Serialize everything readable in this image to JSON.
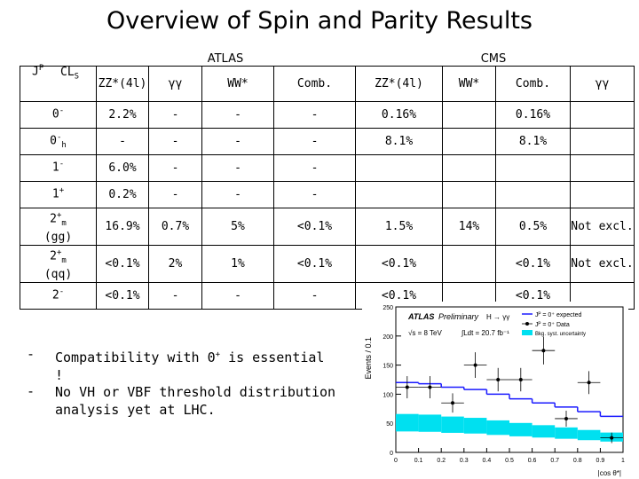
{
  "title": "Overview of Spin and Parity Results",
  "groups": {
    "atlas": "ATLAS",
    "cms": "CMS"
  },
  "corner": {
    "jp": "J",
    "jp_sup": "P",
    "cls": "CL",
    "cls_sub": "S"
  },
  "columns": [
    "ZZ*(4l)",
    "γγ",
    "WW*",
    "Comb.",
    "ZZ*(4l)",
    "WW*",
    "Comb.",
    "γγ"
  ],
  "rows": [
    {
      "label": "0",
      "sup": "-",
      "sub": "",
      "extra": "",
      "cells": [
        "2.2%",
        "-",
        "-",
        "-",
        "0.16%",
        "",
        "0.16%",
        ""
      ]
    },
    {
      "label": "0",
      "sup": "-",
      "sub": "h",
      "extra": "",
      "cells": [
        "-",
        "-",
        "-",
        "-",
        "8.1%",
        "",
        "8.1%",
        ""
      ]
    },
    {
      "label": "1",
      "sup": "-",
      "sub": "",
      "extra": "",
      "cells": [
        "6.0%",
        "-",
        "-",
        "-",
        "",
        "",
        "",
        ""
      ]
    },
    {
      "label": "1",
      "sup": "+",
      "sub": "",
      "extra": "",
      "cells": [
        "0.2%",
        "-",
        "-",
        "-",
        "",
        "",
        "",
        ""
      ]
    },
    {
      "label": "2",
      "sup": "+",
      "sub": "m",
      "extra": "(gg)",
      "cells": [
        "16.9%",
        "0.7%",
        "5%",
        "<0.1%",
        "1.5%",
        "14%",
        "0.5%",
        "Not excl."
      ]
    },
    {
      "label": "2",
      "sup": "+",
      "sub": "m",
      "extra": "(qq)",
      "cells": [
        "<0.1%",
        "2%",
        "1%",
        "<0.1%",
        "<0.1%",
        "",
        "<0.1%",
        "Not excl."
      ]
    },
    {
      "label": "2",
      "sup": "-",
      "sub": "",
      "extra": "",
      "cells": [
        "<0.1%",
        "-",
        "-",
        "-",
        "<0.1%",
        "",
        "<0.1%",
        ""
      ]
    }
  ],
  "bullets": [
    {
      "dash": "-",
      "text_a": "Compatibility with 0",
      "sup": "+",
      "text_b": " is essential !"
    },
    {
      "dash": "-",
      "text_a": "No VH or VBF threshold distribution analysis yet at LHC.",
      "sup": "",
      "text_b": ""
    }
  ],
  "plot": {
    "ylabel": "Events / 0.1",
    "xlabel": "|cos θ*|",
    "legend_title_a": "ATLAS",
    "legend_title_b": "Preliminary",
    "channel": "H → γγ",
    "energy": "√s = 8 TeV",
    "lumi": "∫Ldt = 20.7 fb⁻¹",
    "legend": [
      "Jᴾ = 0⁺ expected",
      "Jᴾ = 0⁺ Data",
      "Bkg. syst. uncertainty"
    ],
    "colors": {
      "expected": "#1a1aff",
      "data": "#000000",
      "band": "#00e0f0"
    },
    "x_ticks": [
      "0",
      "0.1",
      "0.2",
      "0.3",
      "0.4",
      "0.5",
      "0.6",
      "0.7",
      "0.8",
      "0.9",
      "1"
    ],
    "y_ticks": [
      "0",
      "50",
      "100",
      "150",
      "200",
      "250"
    ]
  },
  "chart_data": {
    "type": "line",
    "xlabel": "|cos θ*|",
    "ylabel": "Events / 0.1",
    "xlim": [
      0,
      1
    ],
    "ylim": [
      0,
      250
    ],
    "x": [
      0.05,
      0.15,
      0.25,
      0.35,
      0.45,
      0.55,
      0.65,
      0.75,
      0.85,
      0.95
    ],
    "series": [
      {
        "name": "Jᴾ = 0⁺ expected",
        "values": [
          120,
          118,
          112,
          108,
          100,
          92,
          85,
          78,
          70,
          62
        ]
      },
      {
        "name": "Jᴾ = 0⁺ Data",
        "values": [
          112,
          112,
          85,
          150,
          125,
          125,
          175,
          58,
          120,
          25
        ]
      }
    ]
  }
}
